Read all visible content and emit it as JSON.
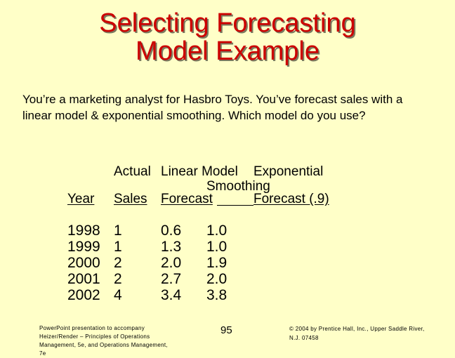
{
  "slide": {
    "title_line1": "Selecting Forecasting",
    "title_line2": "Model Example",
    "intro": "You’re a marketing analyst for Hasbro Toys.  You’ve forecast sales with a linear model & exponential smoothing.  Which model do you use?"
  },
  "table": {
    "headers": {
      "year": "Year",
      "actual_top": "Actual",
      "actual_bottom": "Sales",
      "linear_top": "Linear Model",
      "linear_bottom": "Forecast",
      "exp_top": "Exponential",
      "exp_mid": "Smoothing",
      "exp_bottom": "Forecast (.9)"
    },
    "years": [
      "1998",
      "1999",
      "2000",
      "2001",
      "2002"
    ],
    "actual_sales": [
      "1",
      "1",
      "2",
      "2",
      "4"
    ],
    "linear_forecast": [
      "0.6",
      "1.3",
      "2.0",
      "2.7",
      "3.4"
    ],
    "exp_forecast": [
      "1.0",
      "1.0",
      "1.9",
      "2.0",
      "3.8"
    ]
  },
  "footer": {
    "left_line1": "PowerPoint presentation to accompany",
    "left_line2": "Heizer/Render – Principles of Operations",
    "left_line3": "Management, 5e, and Operations Management,",
    "left_line4": "7e",
    "page_number": "95",
    "right_line1": "© 2004 by Prentice Hall, Inc., Upper Saddle River,",
    "right_line2": "N.J. 07458"
  }
}
